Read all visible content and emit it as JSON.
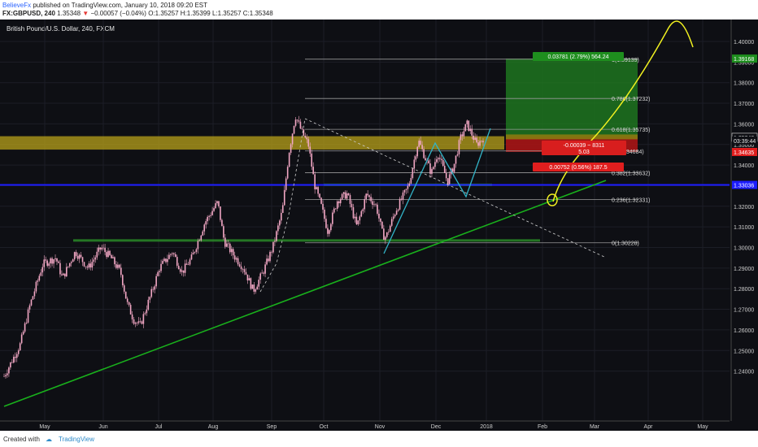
{
  "header": {
    "author": "BelieveFx",
    "published": "published on TradingView.com, January 10, 2018 09:20 EST",
    "symbol": "FX:GBPUSD, 240",
    "last": "1.35348",
    "change_arrow": "▼",
    "change": "−0.00057 (−0.04%)",
    "o_label": "O:",
    "o": "1.35257",
    "h_label": "H:",
    "h": "1.35399",
    "l_label": "L:",
    "l": "1.35257",
    "c_label": "C:",
    "c": "1.35348"
  },
  "chart_title": "British Pound/U.S. Dollar, 240, FXCM",
  "footer": {
    "created_with": "Created with",
    "brand": "TradingView",
    "logo_icon": "tradingview-cloud-icon"
  },
  "colors": {
    "background": "#0e0f14",
    "candle": "#f2a7c4",
    "trendline": "#19b01c",
    "hline_blue": "#1c1cff",
    "zone_yellow": "#b8a21a",
    "zone_green": "#2e9a2a",
    "target_green": "#1f7a1f",
    "stop_red": "#b01515",
    "curve_yellow": "#f0f020",
    "zigzag_cyan": "#32b4c8"
  },
  "chart_data": {
    "type": "candlestick",
    "title": "British Pound/U.S. Dollar, 240, FXCM",
    "x_ticks": [
      "May",
      "Jun",
      "Jul",
      "Aug",
      "Sep",
      "Oct",
      "Nov",
      "Dec",
      "2018",
      "Feb",
      "Mar",
      "Apr",
      "May"
    ],
    "y_ticks": [
      "1.40000",
      "1.39000",
      "1.38000",
      "1.37000",
      "1.36000",
      "1.35000",
      "1.34000",
      "1.33000",
      "1.32000",
      "1.31000",
      "1.30000",
      "1.29000",
      "1.28000",
      "1.27000",
      "1.26000",
      "1.25000",
      "1.24000"
    ],
    "ylim": [
      1.2315,
      1.4085
    ],
    "price_path": [
      [
        0,
        1.2375
      ],
      [
        5,
        1.253
      ],
      [
        8,
        1.272
      ],
      [
        12,
        1.292
      ],
      [
        16,
        1.295
      ],
      [
        18,
        1.285
      ],
      [
        22,
        1.298
      ],
      [
        26,
        1.29
      ],
      [
        30,
        1.3
      ],
      [
        33,
        1.295
      ],
      [
        36,
        1.288
      ],
      [
        38,
        1.273
      ],
      [
        40,
        1.265
      ],
      [
        42,
        1.262
      ],
      [
        46,
        1.28
      ],
      [
        48,
        1.29
      ],
      [
        52,
        1.298
      ],
      [
        55,
        1.288
      ],
      [
        58,
        1.295
      ],
      [
        62,
        1.312
      ],
      [
        66,
        1.322
      ],
      [
        68,
        1.303
      ],
      [
        71,
        1.296
      ],
      [
        74,
        1.29
      ],
      [
        77,
        1.279
      ],
      [
        80,
        1.288
      ],
      [
        83,
        1.3
      ],
      [
        86,
        1.318
      ],
      [
        88,
        1.346
      ],
      [
        90,
        1.364
      ],
      [
        92,
        1.356
      ],
      [
        94,
        1.35
      ],
      [
        96,
        1.33
      ],
      [
        98,
        1.32
      ],
      [
        100,
        1.308
      ],
      [
        103,
        1.323
      ],
      [
        106,
        1.326
      ],
      [
        109,
        1.31
      ],
      [
        112,
        1.326
      ],
      [
        115,
        1.32
      ],
      [
        117,
        1.306
      ],
      [
        118,
        1.305
      ],
      [
        121,
        1.318
      ],
      [
        125,
        1.33
      ],
      [
        128,
        1.352
      ],
      [
        130,
        1.344
      ],
      [
        132,
        1.336
      ],
      [
        134,
        1.346
      ],
      [
        137,
        1.332
      ],
      [
        139,
        1.34
      ],
      [
        141,
        1.353
      ],
      [
        143,
        1.36
      ],
      [
        146,
        1.35
      ],
      [
        148,
        1.353
      ]
    ],
    "price_path_x_note": "x = trading days since May 1, 2017",
    "horizontal_levels": [
      {
        "label": "1.33036",
        "value": 1.33036,
        "color": "#1c1cff"
      }
    ],
    "zones": [
      {
        "name": "yellow-zone",
        "from": 1.3475,
        "to": 1.354
      },
      {
        "name": "green-zone-1",
        "from": 1.3032,
        "to": 1.304
      },
      {
        "name": "green-zone-2",
        "from": 1.33,
        "to": 1.331
      }
    ],
    "fibonacci": [
      {
        "label": "1(1.39139)",
        "value": 1.39139
      },
      {
        "label": "0.786(1.37232)",
        "value": 1.37232
      },
      {
        "label": "0.618(1.35735)",
        "value": 1.35735
      },
      {
        "label": "0.5(1.34684)",
        "value": 1.34684
      },
      {
        "label": "0.382(1.33632)",
        "value": 1.33632
      },
      {
        "label": "0.236(1.32331)",
        "value": 1.32331
      },
      {
        "label": "0(1.30228)",
        "value": 1.30228
      }
    ],
    "annotations": {
      "target_label": "0.03781 (2.79%) 564.24",
      "stop_label": "0.00752 (0.56%) 187.5",
      "diff_label_line1": "-0.00039 ~ 8311",
      "diff_label_line2": "5.03"
    },
    "price_tags": [
      {
        "text": "1.39168",
        "value": 1.39168,
        "style": "green"
      },
      {
        "text": "1.35367",
        "value": 1.35367,
        "style": "plain"
      },
      {
        "text": "1.35348",
        "value": 1.35348,
        "style": "outline"
      },
      {
        "text": "03:39:44",
        "value": 1.3519,
        "style": "plain"
      },
      {
        "text": "1.34635",
        "value": 1.34635,
        "style": "red"
      },
      {
        "text": "1.33036",
        "value": 1.33036,
        "style": "blue"
      }
    ]
  }
}
